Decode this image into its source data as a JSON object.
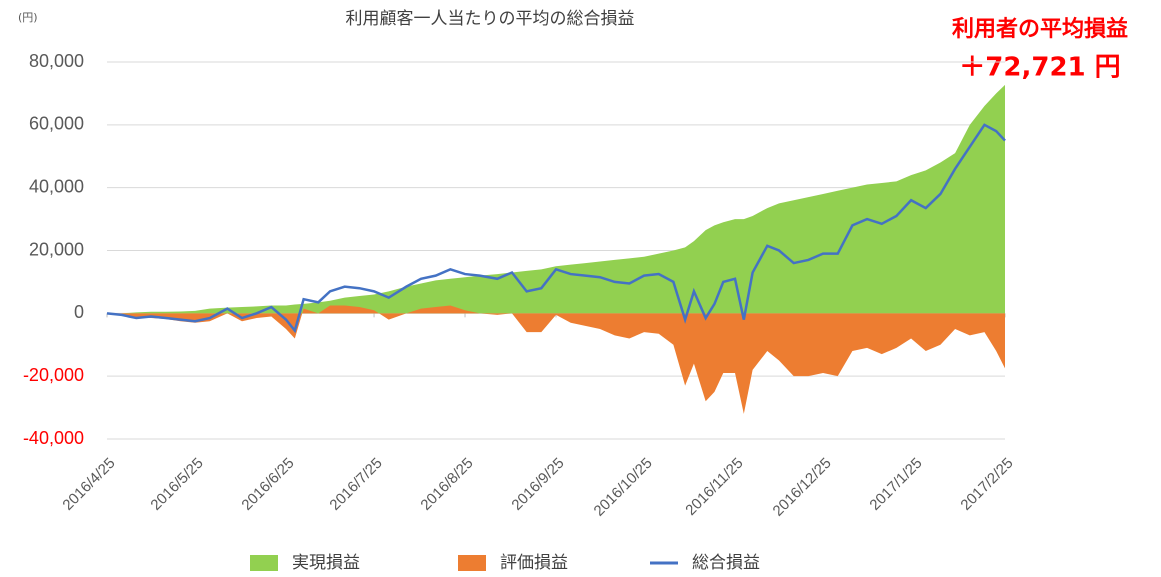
{
  "chart_data": {
    "type": "area",
    "title": "利用顧客一人当たりの平均の総合損益",
    "unit_label": "(円)",
    "annotation": {
      "title": "利用者の平均損益",
      "value": "＋72,721 円",
      "color": "#ff0000"
    },
    "x": [
      "2016-04-25",
      "2016-04-30",
      "2016-05-05",
      "2016-05-10",
      "2016-05-15",
      "2016-05-20",
      "2016-05-25",
      "2016-05-30",
      "2016-06-05",
      "2016-06-10",
      "2016-06-15",
      "2016-06-20",
      "2016-06-25",
      "2016-06-28",
      "2016-07-01",
      "2016-07-06",
      "2016-07-10",
      "2016-07-15",
      "2016-07-20",
      "2016-07-25",
      "2016-07-30",
      "2016-08-05",
      "2016-08-10",
      "2016-08-15",
      "2016-08-20",
      "2016-08-25",
      "2016-08-30",
      "2016-09-05",
      "2016-09-10",
      "2016-09-15",
      "2016-09-20",
      "2016-09-25",
      "2016-09-30",
      "2016-10-05",
      "2016-10-10",
      "2016-10-15",
      "2016-10-20",
      "2016-10-25",
      "2016-10-30",
      "2016-11-04",
      "2016-11-08",
      "2016-11-11",
      "2016-11-15",
      "2016-11-18",
      "2016-11-21",
      "2016-11-25",
      "2016-11-28",
      "2016-12-01",
      "2016-12-06",
      "2016-12-10",
      "2016-12-15",
      "2016-12-20",
      "2016-12-25",
      "2016-12-30",
      "2017-01-04",
      "2017-01-09",
      "2017-01-14",
      "2017-01-19",
      "2017-01-24",
      "2017-01-29",
      "2017-02-03",
      "2017-02-08",
      "2017-02-13",
      "2017-02-18",
      "2017-02-22",
      "2017-02-25"
    ],
    "series": [
      {
        "name": "実現損益",
        "kind": "area",
        "color": "#92d050",
        "values": [
          0,
          0,
          300,
          500,
          500,
          600,
          800,
          1500,
          1800,
          2000,
          2200,
          2500,
          2500,
          2800,
          3000,
          3500,
          4000,
          5000,
          5500,
          6000,
          7000,
          8500,
          9500,
          10500,
          11000,
          11500,
          12000,
          12500,
          13000,
          13500,
          14000,
          15000,
          15500,
          16000,
          16500,
          17000,
          17500,
          18000,
          19000,
          20000,
          21000,
          23000,
          26500,
          28000,
          29000,
          30000,
          30000,
          31000,
          33500,
          35000,
          36000,
          37000,
          38000,
          39000,
          40000,
          41000,
          41500,
          42000,
          44000,
          45500,
          48000,
          51000,
          60000,
          66000,
          70000,
          72721
        ]
      },
      {
        "name": "評価損益",
        "kind": "area",
        "color": "#ed7d31",
        "values": [
          0,
          -500,
          -1500,
          -1500,
          -1800,
          -2500,
          -3000,
          -2500,
          0,
          -2500,
          -1500,
          -1000,
          -5000,
          -8000,
          1500,
          0,
          2500,
          2500,
          2000,
          1000,
          -2000,
          0,
          1500,
          2000,
          2500,
          1000,
          0,
          -500,
          0,
          -6000,
          -6000,
          -500,
          -3000,
          -4000,
          -5000,
          -7000,
          -8000,
          -6000,
          -6500,
          -10000,
          -23000,
          -16000,
          -28000,
          -25000,
          -19000,
          -19000,
          -32000,
          -18000,
          -12000,
          -15000,
          -20000,
          -20000,
          -19000,
          -20000,
          -12000,
          -11000,
          -13000,
          -11000,
          -8000,
          -12000,
          -10000,
          -5000,
          -7000,
          -6000,
          -12000,
          -17500
        ]
      },
      {
        "name": "総合損益",
        "kind": "line",
        "color": "#4472c4",
        "values": [
          0,
          -500,
          -1500,
          -1000,
          -1500,
          -2000,
          -2500,
          -1500,
          1500,
          -1500,
          0,
          2000,
          -2000,
          -5500,
          4500,
          3500,
          7000,
          8500,
          8000,
          7000,
          5000,
          8500,
          11000,
          12000,
          14000,
          12500,
          12000,
          11000,
          13000,
          7000,
          8000,
          14000,
          12500,
          12000,
          11500,
          10000,
          9500,
          12000,
          12500,
          10000,
          -2000,
          7000,
          -1500,
          3000,
          10000,
          11000,
          -2000,
          13000,
          21500,
          20000,
          16000,
          17000,
          19000,
          19000,
          28000,
          30000,
          28500,
          31000,
          36000,
          33500,
          38000,
          46000,
          53000,
          60000,
          58000,
          55000
        ]
      }
    ],
    "xlim": [
      "2016-04-25",
      "2017-02-25"
    ],
    "xticks": [
      {
        "value": "2016-04-25",
        "label": "2016/4/25"
      },
      {
        "value": "2016-05-25",
        "label": "2016/5/25"
      },
      {
        "value": "2016-06-25",
        "label": "2016/6/25"
      },
      {
        "value": "2016-07-25",
        "label": "2016/7/25"
      },
      {
        "value": "2016-08-25",
        "label": "2016/8/25"
      },
      {
        "value": "2016-09-25",
        "label": "2016/9/25"
      },
      {
        "value": "2016-10-25",
        "label": "2016/10/25"
      },
      {
        "value": "2016-11-25",
        "label": "2016/11/25"
      },
      {
        "value": "2016-12-25",
        "label": "2016/12/25"
      },
      {
        "value": "2017-01-25",
        "label": "2017/1/25"
      },
      {
        "value": "2017-02-25",
        "label": "2017/2/25"
      }
    ],
    "ylim": [
      -40000,
      80000
    ],
    "yticks": [
      {
        "value": -40000,
        "label": "-40,000"
      },
      {
        "value": -20000,
        "label": "-20,000"
      },
      0,
      {
        "value": 20000,
        "label": "20,000"
      },
      {
        "value": 40000,
        "label": "40,000"
      },
      {
        "value": 60000,
        "label": "60,000"
      },
      {
        "value": 80000,
        "label": "80,000"
      }
    ],
    "negative_tick_color": "#ff0000",
    "grid": true
  }
}
